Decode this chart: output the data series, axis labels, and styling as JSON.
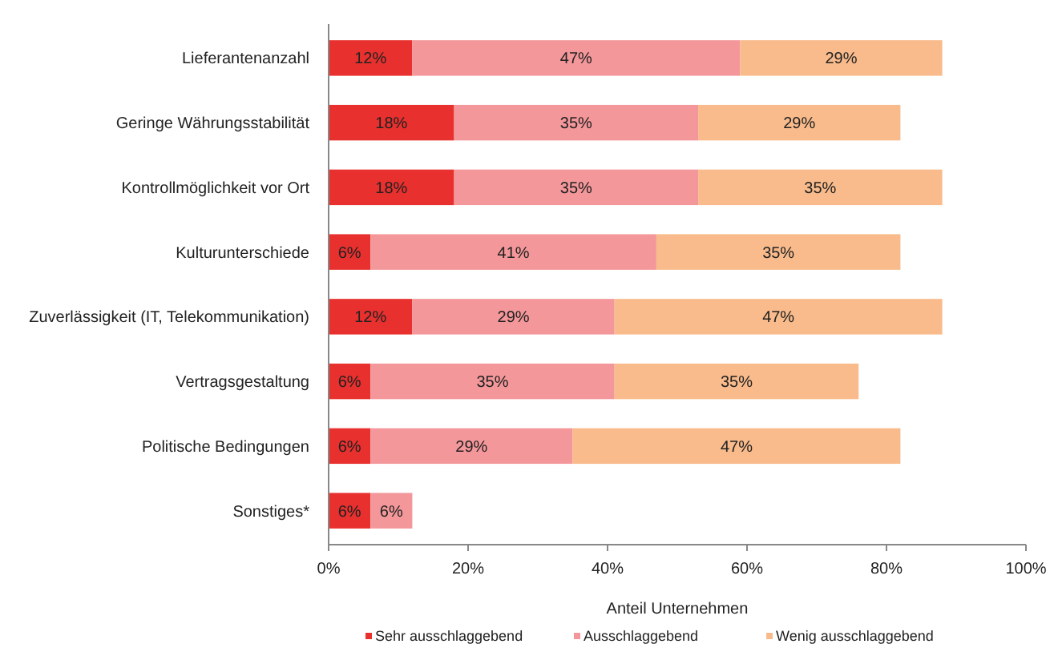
{
  "chart_data": {
    "type": "bar",
    "orientation": "horizontal",
    "stacked": true,
    "xlabel": "Anteil Unternehmen",
    "legend": "bottom",
    "grid": false,
    "categories": [
      "Lieferantenanzahl",
      "Geringe Währungsstabilität",
      "Kontrollmöglichkeit vor Ort",
      "Kulturunterschiede",
      "Zuverlässigkeit (IT, Telekommunikation)",
      "Vertragsgestaltung",
      "Politische Bedingungen",
      "Sonstiges*"
    ],
    "xlim": [
      0,
      100
    ],
    "xticks": [
      {
        "value": 0,
        "label": "0%"
      },
      {
        "value": 20,
        "label": "20%"
      },
      {
        "value": 40,
        "label": "40%"
      },
      {
        "value": 60,
        "label": "60%"
      },
      {
        "value": 80,
        "label": "80%"
      },
      {
        "value": 100,
        "label": "100%"
      }
    ],
    "series": [
      {
        "name": "Sehr ausschlaggebend",
        "color": "#e8302e",
        "values": [
          12,
          18,
          18,
          6,
          12,
          6,
          6,
          6
        ],
        "value_labels": [
          "12%",
          "18%",
          "18%",
          "6%",
          "12%",
          "6%",
          "6%",
          "6%"
        ]
      },
      {
        "name": "Ausschlaggebend",
        "color": "#f4979a",
        "values": [
          47,
          35,
          35,
          41,
          29,
          35,
          29,
          6
        ],
        "value_labels": [
          "47%",
          "35%",
          "35%",
          "41%",
          "29%",
          "35%",
          "29%",
          "6%"
        ]
      },
      {
        "name": "Wenig ausschlaggebend",
        "color": "#f9bb8b",
        "values": [
          29,
          29,
          35,
          35,
          47,
          35,
          47,
          null
        ],
        "value_labels": [
          "29%",
          "29%",
          "35%",
          "35%",
          "47%",
          "35%",
          "47%",
          null
        ]
      }
    ]
  }
}
